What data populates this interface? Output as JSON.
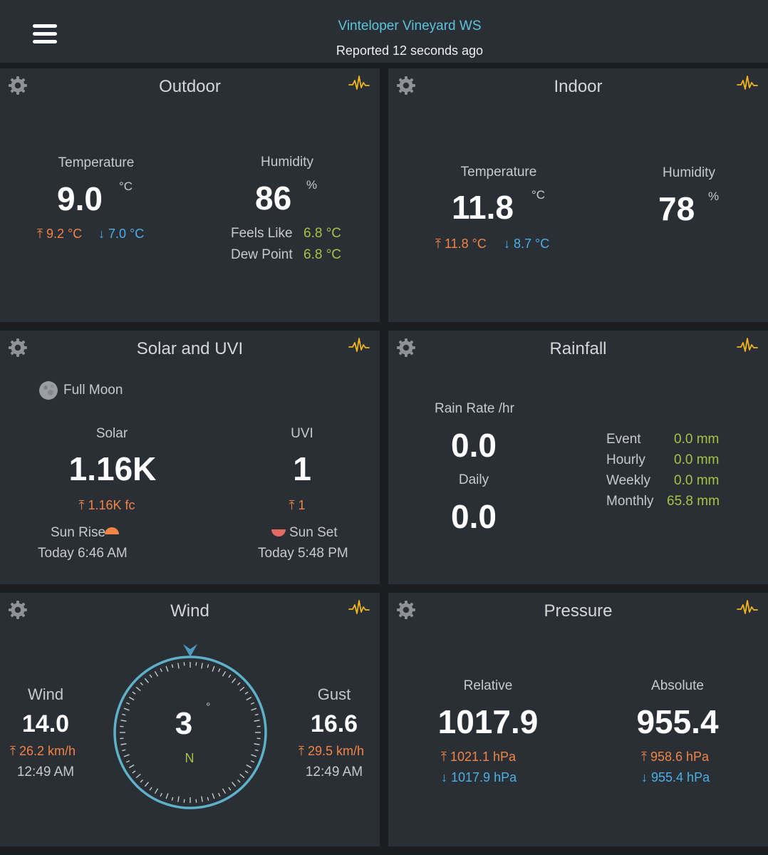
{
  "header": {
    "station_name": "Vinteloper Vineyard WS",
    "reported": "Reported 12 seconds ago"
  },
  "outdoor": {
    "title": "Outdoor",
    "temperature": {
      "label": "Temperature",
      "value": "9.0",
      "unit": "°C",
      "high": "9.2 °C",
      "low": "7.0 °C"
    },
    "humidity": {
      "label": "Humidity",
      "value": "86",
      "unit": "%"
    },
    "feels_like": {
      "label": "Feels Like",
      "value": "6.8 °C"
    },
    "dew_point": {
      "label": "Dew Point",
      "value": "6.8 °C"
    }
  },
  "indoor": {
    "title": "Indoor",
    "temperature": {
      "label": "Temperature",
      "value": "11.8",
      "unit": "°C",
      "high": "11.8 °C",
      "low": "8.7 °C"
    },
    "humidity": {
      "label": "Humidity",
      "value": "78",
      "unit": "%"
    }
  },
  "solar": {
    "title": "Solar and UVI",
    "moon_phase": "Full Moon",
    "solar": {
      "label": "Solar",
      "value": "1.16K",
      "high": "1.16K fc"
    },
    "uvi": {
      "label": "UVI",
      "value": "1",
      "high": "1"
    },
    "sunrise": {
      "label": "Sun Rise",
      "time": "Today 6:46 AM"
    },
    "sunset": {
      "label": "Sun Set",
      "time": "Today 5:48 PM"
    }
  },
  "rainfall": {
    "title": "Rainfall",
    "rate": {
      "label": "Rain Rate /hr",
      "value": "0.0"
    },
    "daily": {
      "label": "Daily",
      "value": "0.0"
    },
    "stats": [
      {
        "label": "Event",
        "value": "0.0 mm"
      },
      {
        "label": "Hourly",
        "value": "0.0 mm"
      },
      {
        "label": "Weekly",
        "value": "0.0 mm"
      },
      {
        "label": "Monthly",
        "value": "65.8 mm"
      }
    ]
  },
  "wind": {
    "title": "Wind",
    "wind": {
      "label": "Wind",
      "value": "14.0",
      "high": "26.2 km/h",
      "time": "12:49 AM"
    },
    "gust": {
      "label": "Gust",
      "value": "16.6",
      "high": "29.5 km/h",
      "time": "12:49 AM"
    },
    "direction": {
      "degrees": "3",
      "unit": "°",
      "cardinal": "N"
    }
  },
  "pressure": {
    "title": "Pressure",
    "relative": {
      "label": "Relative",
      "value": "1017.9",
      "high": "1021.1 hPa",
      "low": "1017.9 hPa"
    },
    "absolute": {
      "label": "Absolute",
      "value": "955.4",
      "high": "958.6 hPa",
      "low": "955.4 hPa"
    }
  },
  "icons": {
    "settings": "gear-icon",
    "chart": "pulse-icon",
    "menu": "hamburger-icon"
  },
  "colors": {
    "accent": "#5cc4da",
    "high": "#f28446",
    "low": "#4bb0e8",
    "secondary": "#a3c542",
    "pulse": "#f2b51c"
  }
}
